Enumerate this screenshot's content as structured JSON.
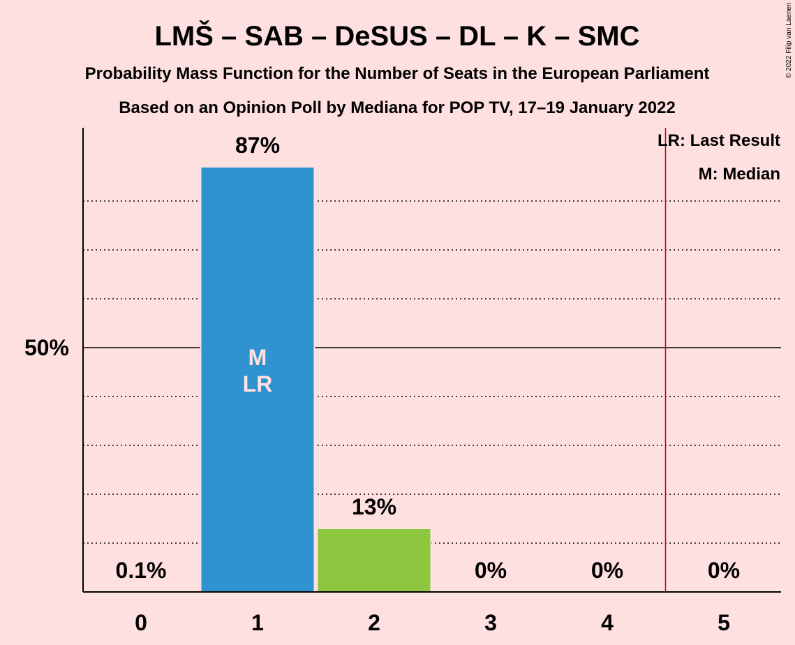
{
  "title": "LMŠ – SAB – DeSUS – DL – K – SMC",
  "subtitle1": "Probability Mass Function for the Number of Seats in the European Parliament",
  "subtitle2": "Based on an Opinion Poll by Mediana for POP TV, 17–19 January 2022",
  "copyright": "© 2022 Filip van Laenen",
  "legend": {
    "last_result": "LR: Last Result",
    "median": "M: Median"
  },
  "chart_data": {
    "type": "bar",
    "categories": [
      "0",
      "1",
      "2",
      "3",
      "4",
      "5"
    ],
    "values": [
      0.1,
      87,
      13,
      0,
      0,
      0
    ],
    "labels": [
      "0.1%",
      "87%",
      "13%",
      "0%",
      "0%",
      "0%"
    ],
    "bar_colors": [
      "#2E93D0",
      "#2E93D0",
      "#8DC63F",
      "#2E93D0",
      "#2E93D0",
      "#2E93D0"
    ],
    "ylim": [
      0,
      95
    ],
    "ytick_value": 50,
    "ytick_label": "50%",
    "minor_gridlines": [
      10,
      20,
      30,
      40,
      60,
      70,
      80
    ],
    "last_result_line": 4.5,
    "last_result_line_color": "#CC0000",
    "bar_markers": [
      {
        "index": 1,
        "lines": [
          "M",
          "LR"
        ]
      }
    ]
  }
}
